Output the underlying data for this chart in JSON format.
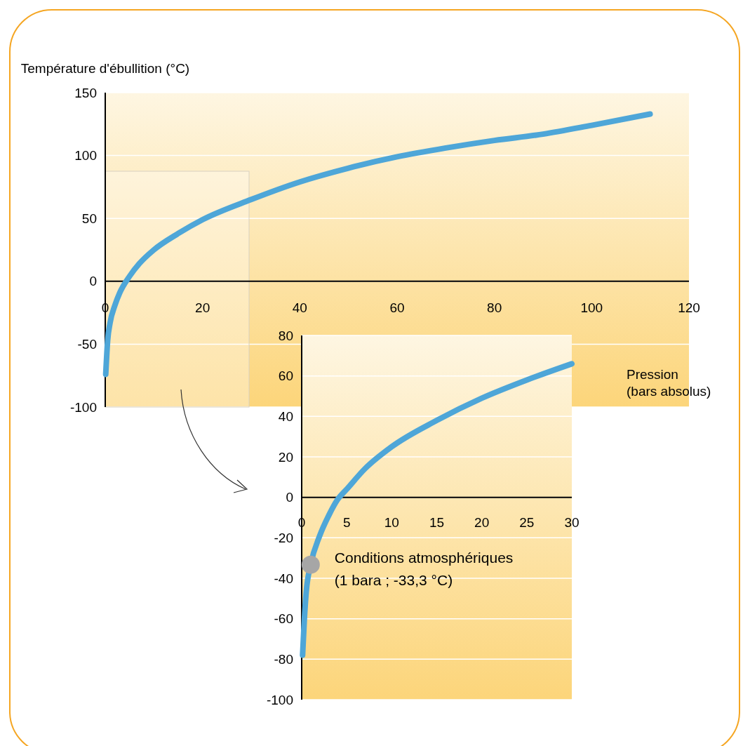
{
  "chart_data": [
    {
      "type": "line",
      "ylabel": "Température d'ébullition (°C)",
      "xlabel": "Pression (bars absolus)",
      "xlim": [
        0,
        120
      ],
      "ylim": [
        -100,
        150
      ],
      "xticks": [
        0,
        20,
        40,
        60,
        80,
        100,
        120
      ],
      "yticks": [
        -100,
        -50,
        0,
        50,
        100,
        150
      ],
      "grid": "y",
      "series": [
        {
          "color": "#4ea6d8",
          "x": [
            0.1,
            0.5,
            1,
            2,
            3,
            5,
            7,
            10,
            15,
            20,
            30,
            40,
            50,
            60,
            70,
            80,
            90,
            100,
            112
          ],
          "values": [
            -74,
            -47,
            -33,
            -19,
            -9,
            4,
            14,
            25,
            38,
            49,
            65,
            79,
            90,
            99,
            106,
            112,
            117,
            124,
            133
          ]
        }
      ]
    },
    {
      "type": "line",
      "xlim": [
        0,
        30
      ],
      "ylim": [
        -100,
        80
      ],
      "xticks": [
        0,
        5,
        10,
        15,
        20,
        25,
        30
      ],
      "yticks": [
        -100,
        -80,
        -60,
        -40,
        -20,
        0,
        20,
        40,
        60,
        80
      ],
      "grid": "y",
      "series": [
        {
          "color": "#4ea6d8",
          "x": [
            0.1,
            0.3,
            0.5,
            1,
            2,
            3,
            4,
            5,
            7,
            10,
            15,
            20,
            25,
            30
          ],
          "values": [
            -78,
            -60,
            -47,
            -33.3,
            -19,
            -9,
            -1,
            4,
            14,
            25,
            38,
            49,
            58,
            66
          ]
        },
        {
          "type": "scatter",
          "marker": "circle",
          "color": "#a6a6a6",
          "x": [
            1
          ],
          "values": [
            -33.3
          ]
        }
      ],
      "annotations": [
        {
          "text": "Conditions atmosphériques (1 bara ; -33,3 °C)",
          "x": 1,
          "y": -33.3
        }
      ]
    }
  ]
}
